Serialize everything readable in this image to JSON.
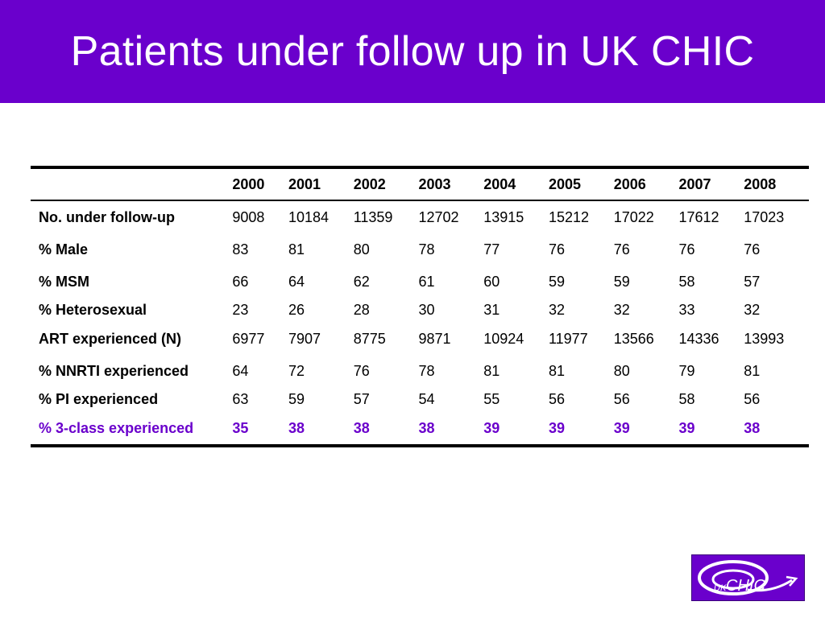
{
  "slide": {
    "title": "Patients under follow up in UK CHIC"
  },
  "table": {
    "header_blank": "",
    "years": [
      "2000",
      "2001",
      "2002",
      "2003",
      "2004",
      "2005",
      "2006",
      "2007",
      "2008"
    ],
    "rows": [
      {
        "label": "No. under follow-up",
        "values": [
          "9008",
          "10184",
          "11359",
          "12702",
          "13915",
          "15212",
          "17022",
          "17612",
          "17023"
        ]
      },
      {
        "label": "% Male",
        "values": [
          "83",
          "81",
          "80",
          "78",
          "77",
          "76",
          "76",
          "76",
          "76"
        ]
      },
      {
        "label": "% MSM",
        "values": [
          "66",
          "64",
          "62",
          "61",
          "60",
          "59",
          "59",
          "58",
          "57"
        ]
      },
      {
        "label": "% Heterosexual",
        "values": [
          "23",
          "26",
          "28",
          "30",
          "31",
          "32",
          "32",
          "33",
          "32"
        ]
      },
      {
        "label": "ART experienced (N)",
        "values": [
          "6977",
          "7907",
          "8775",
          "9871",
          "10924",
          "11977",
          "13566",
          "14336",
          "13993"
        ]
      },
      {
        "label": "% NNRTI experienced",
        "values": [
          "64",
          "72",
          "76",
          "78",
          "81",
          "81",
          "80",
          "79",
          "81"
        ]
      },
      {
        "label": "% PI experienced",
        "values": [
          "63",
          "59",
          "57",
          "54",
          "55",
          "56",
          "56",
          "58",
          "56"
        ]
      },
      {
        "label": "% 3-class experienced",
        "values": [
          "35",
          "38",
          "38",
          "38",
          "39",
          "39",
          "39",
          "39",
          "38"
        ]
      }
    ]
  },
  "logo": {
    "text_uk": "UK",
    "text_chic": "CHIC"
  },
  "colors": {
    "brand_purple": "#6a00cc",
    "title_text": "#ffffff",
    "table_text": "#000000"
  }
}
